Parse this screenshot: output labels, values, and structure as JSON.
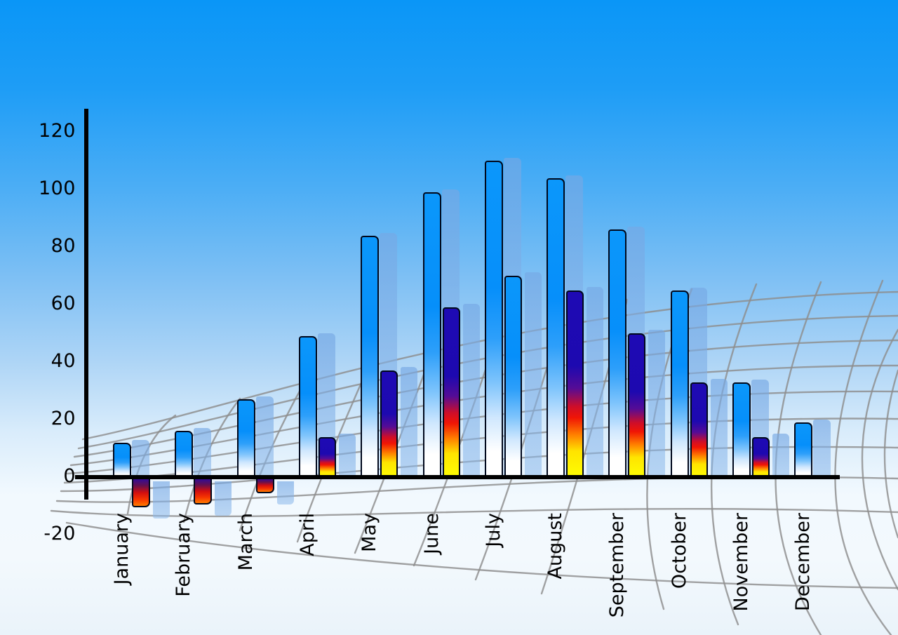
{
  "chart_data": {
    "type": "bar",
    "title": "",
    "xlabel": "",
    "ylabel": "",
    "categories": [
      "January",
      "February",
      "March",
      "April",
      "May",
      "June",
      "July",
      "August",
      "September",
      "October",
      "November",
      "December"
    ],
    "series": [
      {
        "name": "blue-series",
        "values": [
          12,
          16,
          27,
          49,
          84,
          99,
          110,
          104,
          86,
          65,
          33,
          19
        ]
      },
      {
        "name": "fire-series",
        "values": [
          -10,
          -9,
          -5,
          14,
          37,
          59,
          70,
          65,
          50,
          33,
          14,
          null
        ]
      }
    ],
    "ylim": [
      -20,
      120
    ],
    "y_tick_step": 20,
    "grid": "perspective decorative floor grid, no data gridlines",
    "legend": "none",
    "notes": "3D-style bars with translucent light-blue shadow copies; July second bar rendered in blue gradient instead of fire gradient; December has no second bar; January-March second bars are negative."
  },
  "y_axis": {
    "ticks": [
      {
        "label": "120",
        "value": 120
      },
      {
        "label": "100",
        "value": 100
      },
      {
        "label": "80",
        "value": 80
      },
      {
        "label": "60",
        "value": 60
      },
      {
        "label": "40",
        "value": 40
      },
      {
        "label": "20",
        "value": 20
      },
      {
        "label": "0",
        "value": 0
      },
      {
        "label": "-20",
        "value": -20
      }
    ]
  },
  "months": [
    {
      "name": "January",
      "blue": 12,
      "second": -10,
      "second_style": "fire"
    },
    {
      "name": "February",
      "blue": 16,
      "second": -9,
      "second_style": "fire"
    },
    {
      "name": "March",
      "blue": 27,
      "second": -5,
      "second_style": "fire"
    },
    {
      "name": "April",
      "blue": 49,
      "second": 14,
      "second_style": "fire"
    },
    {
      "name": "May",
      "blue": 84,
      "second": 37,
      "second_style": "fire"
    },
    {
      "name": "June",
      "blue": 99,
      "second": 59,
      "second_style": "fire"
    },
    {
      "name": "July",
      "blue": 110,
      "second": 70,
      "second_style": "blue"
    },
    {
      "name": "August",
      "blue": 104,
      "second": 65,
      "second_style": "fire"
    },
    {
      "name": "September",
      "blue": 86,
      "second": 50,
      "second_style": "fire"
    },
    {
      "name": "October",
      "blue": 65,
      "second": 33,
      "second_style": "fire"
    },
    {
      "name": "November",
      "blue": 33,
      "second": 14,
      "second_style": "fire"
    },
    {
      "name": "December",
      "blue": 19,
      "second": null,
      "second_style": "none"
    }
  ],
  "colors": {
    "sky_top": "#0a96f7",
    "sky_bottom": "#eaf3fa",
    "bar_blue": "#068ffa",
    "bar_fire_navy": "#1e0ab4",
    "bar_fire_red": "#f01505",
    "bar_fire_yellow": "#fdfd03",
    "echo_blue": "#9dc2ec",
    "grid_gray": "#8d8d8d",
    "axis_black": "#000000"
  }
}
